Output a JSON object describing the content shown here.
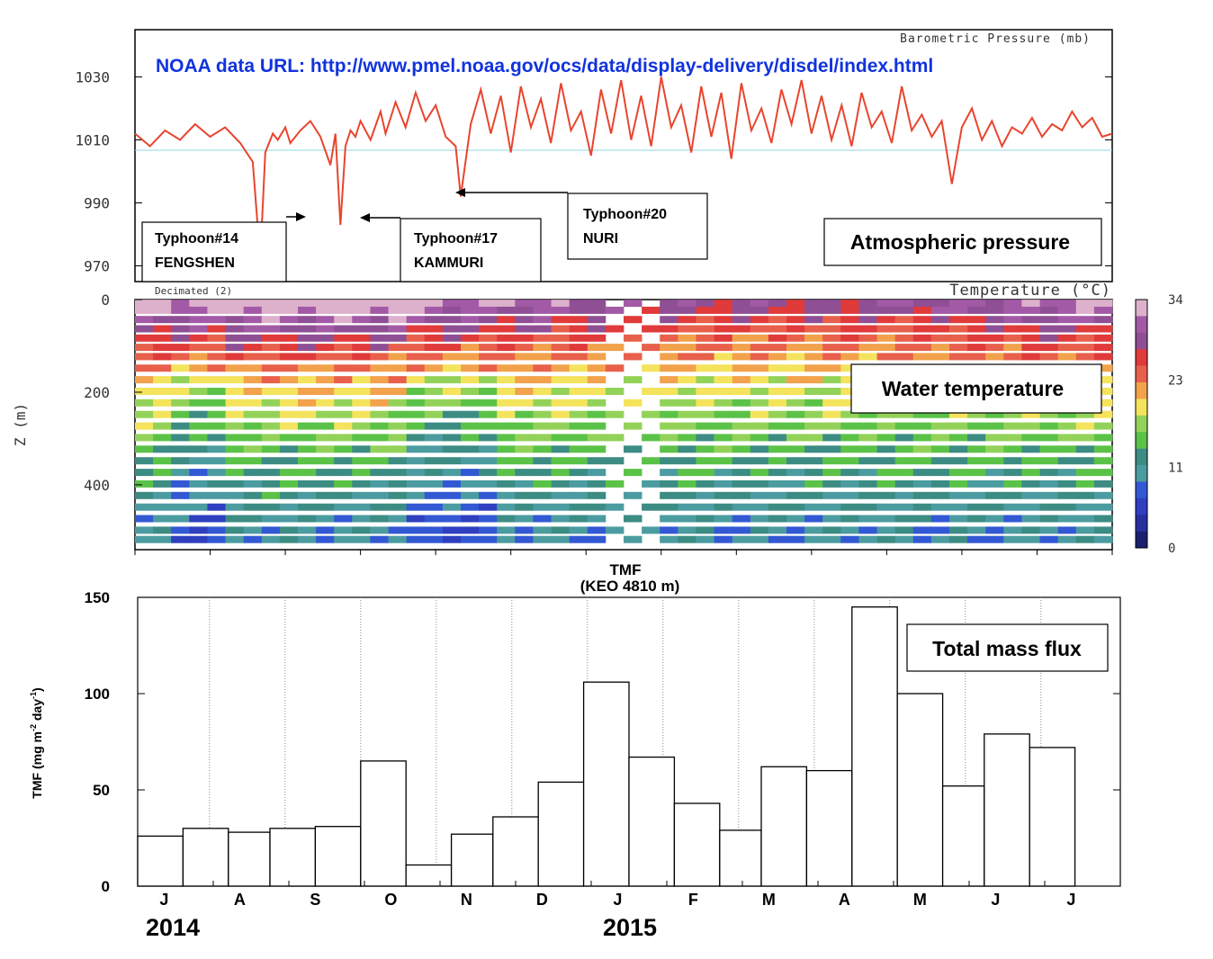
{
  "url_note": "NOAA data URL: http://www.pmel.noaa.gov/ocs/data/display-delivery/disdel/index.html",
  "chart_data": [
    {
      "type": "line",
      "corner_label": "Barometric Pressure (mb)",
      "panel_label": "Atmospheric pressure",
      "ylim": [
        965,
        1045
      ],
      "yticks": [
        "1030",
        "1010",
        "990",
        "970"
      ],
      "yticks_values": [
        1030,
        1010,
        990,
        970
      ],
      "series": [
        {
          "color": "#e8452e",
          "x": [
            0,
            6,
            12,
            18,
            24,
            30,
            36,
            42,
            47,
            50,
            52,
            55,
            57,
            60,
            62,
            66,
            70,
            74,
            78,
            80,
            82,
            84,
            86,
            88,
            90,
            94,
            98,
            100,
            104,
            108,
            112,
            116,
            120,
            124,
            128,
            130,
            134,
            138,
            142,
            146,
            150,
            154,
            158,
            162,
            166,
            170,
            174,
            178,
            182,
            186,
            190,
            194,
            198,
            202,
            206,
            210,
            214,
            218,
            222,
            226,
            230,
            234,
            238,
            242,
            246,
            250,
            254,
            258,
            262,
            266,
            270,
            274,
            278,
            282,
            286,
            290,
            294,
            298,
            302,
            306,
            310,
            314,
            318,
            322,
            326,
            330,
            334,
            338,
            342,
            346,
            350,
            354,
            358,
            362,
            366,
            370,
            374,
            378,
            382,
            386,
            390
          ],
          "y": [
            1012,
            1008,
            1013,
            1010,
            1015,
            1011,
            1014,
            1009,
            1003,
            972,
            1006,
            1012,
            1010,
            1014,
            1009,
            1013,
            1016,
            1011,
            1002,
            1012,
            983,
            1008,
            1013,
            1011,
            1016,
            1010,
            1019,
            1012,
            1022,
            1014,
            1025,
            1016,
            1021,
            1011,
            1008,
            992,
            1015,
            1026,
            1012,
            1024,
            1006,
            1027,
            1014,
            1023,
            1009,
            1028,
            1013,
            1019,
            1005,
            1026,
            1012,
            1029,
            1010,
            1024,
            1008,
            1030,
            1014,
            1021,
            1006,
            1027,
            1011,
            1025,
            1004,
            1028,
            1013,
            1020,
            1009,
            1026,
            1015,
            1029,
            1012,
            1024,
            1010,
            1021,
            1008,
            1025,
            1014,
            1019,
            1009,
            1027,
            1013,
            1018,
            1011,
            1016,
            996,
            1014,
            1020,
            1010,
            1016,
            1008,
            1014,
            1012,
            1017,
            1011,
            1015,
            1013,
            1019,
            1014,
            1017,
            1011,
            1012
          ]
        }
      ],
      "annotations": [
        {
          "line1": "Typhoon#14",
          "line2": "FENGSHEN"
        },
        {
          "line1": "Typhoon#17",
          "line2": "KAMMURI"
        },
        {
          "line1": "Typhoon#20",
          "line2": "NURI"
        }
      ]
    },
    {
      "type": "heatmap",
      "top_label": "Decimated (2)",
      "corner_label": "Temperature (°C)",
      "panel_label": "Water temperature",
      "ylabel": "Z (m)",
      "ylim": [
        0,
        540
      ],
      "yticks": [
        "0",
        "200",
        "400"
      ],
      "yticks_values": [
        0,
        200,
        400
      ],
      "colorbar_ticks": [
        "34",
        "23",
        "11",
        "0"
      ],
      "colorbar_values": [
        34,
        23,
        11,
        0
      ],
      "colorbar_colors": [
        "#ddb1cc",
        "#a35aa6",
        "#8f4f94",
        "#e03a3a",
        "#e8604b",
        "#f2a24c",
        "#f4e35c",
        "#93d258",
        "#5bc248",
        "#3c8c84",
        "#4b9ca0",
        "#3358d4",
        "#2f3fbf",
        "#2a2fa0",
        "#1a1f6e"
      ],
      "depths_m": [
        10,
        25,
        45,
        65,
        85,
        105,
        125,
        150,
        175,
        200,
        225,
        250,
        275,
        300,
        325,
        350,
        375,
        400,
        425,
        450,
        475,
        500,
        520
      ],
      "time_bins": 54
    },
    {
      "type": "bar",
      "title": "TMF",
      "subtitle": "(KEO 4810 m)",
      "panel_label": "Total mass flux",
      "ylabel": "TMF (mg m",
      "ylabel_exp1": "-2",
      "ylabel_mid": " day",
      "ylabel_exp2": "-1",
      "ylabel_end": ")",
      "ylim": [
        0,
        150
      ],
      "yticks": [
        "150",
        "100",
        "50",
        "0"
      ],
      "yticks_values": [
        150,
        100,
        50,
        0
      ],
      "month_labels": [
        "J",
        "A",
        "S",
        "O",
        "N",
        "D",
        "J",
        "F",
        "M",
        "A",
        "M",
        "J",
        "J"
      ],
      "year_labels": [
        "2014",
        "2015"
      ],
      "bars": [
        {
          "start": 0.0,
          "end": 0.6,
          "value": 26
        },
        {
          "start": 0.6,
          "end": 1.2,
          "value": 30
        },
        {
          "start": 1.2,
          "end": 1.75,
          "value": 28
        },
        {
          "start": 1.75,
          "end": 2.35,
          "value": 30
        },
        {
          "start": 2.35,
          "end": 2.95,
          "value": 31
        },
        {
          "start": 2.95,
          "end": 3.55,
          "value": 65
        },
        {
          "start": 3.55,
          "end": 4.15,
          "value": 11
        },
        {
          "start": 4.15,
          "end": 4.7,
          "value": 27
        },
        {
          "start": 4.7,
          "end": 5.3,
          "value": 36
        },
        {
          "start": 5.3,
          "end": 5.9,
          "value": 54
        },
        {
          "start": 5.9,
          "end": 6.5,
          "value": 106
        },
        {
          "start": 6.5,
          "end": 7.1,
          "value": 67
        },
        {
          "start": 7.1,
          "end": 7.7,
          "value": 43
        },
        {
          "start": 7.7,
          "end": 8.25,
          "value": 29
        },
        {
          "start": 8.25,
          "end": 8.85,
          "value": 62
        },
        {
          "start": 8.85,
          "end": 9.45,
          "value": 60
        },
        {
          "start": 9.45,
          "end": 10.05,
          "value": 145
        },
        {
          "start": 10.05,
          "end": 10.65,
          "value": 100
        },
        {
          "start": 10.65,
          "end": 11.2,
          "value": 52
        },
        {
          "start": 11.2,
          "end": 11.8,
          "value": 79
        },
        {
          "start": 11.8,
          "end": 12.4,
          "value": 72
        }
      ]
    }
  ]
}
